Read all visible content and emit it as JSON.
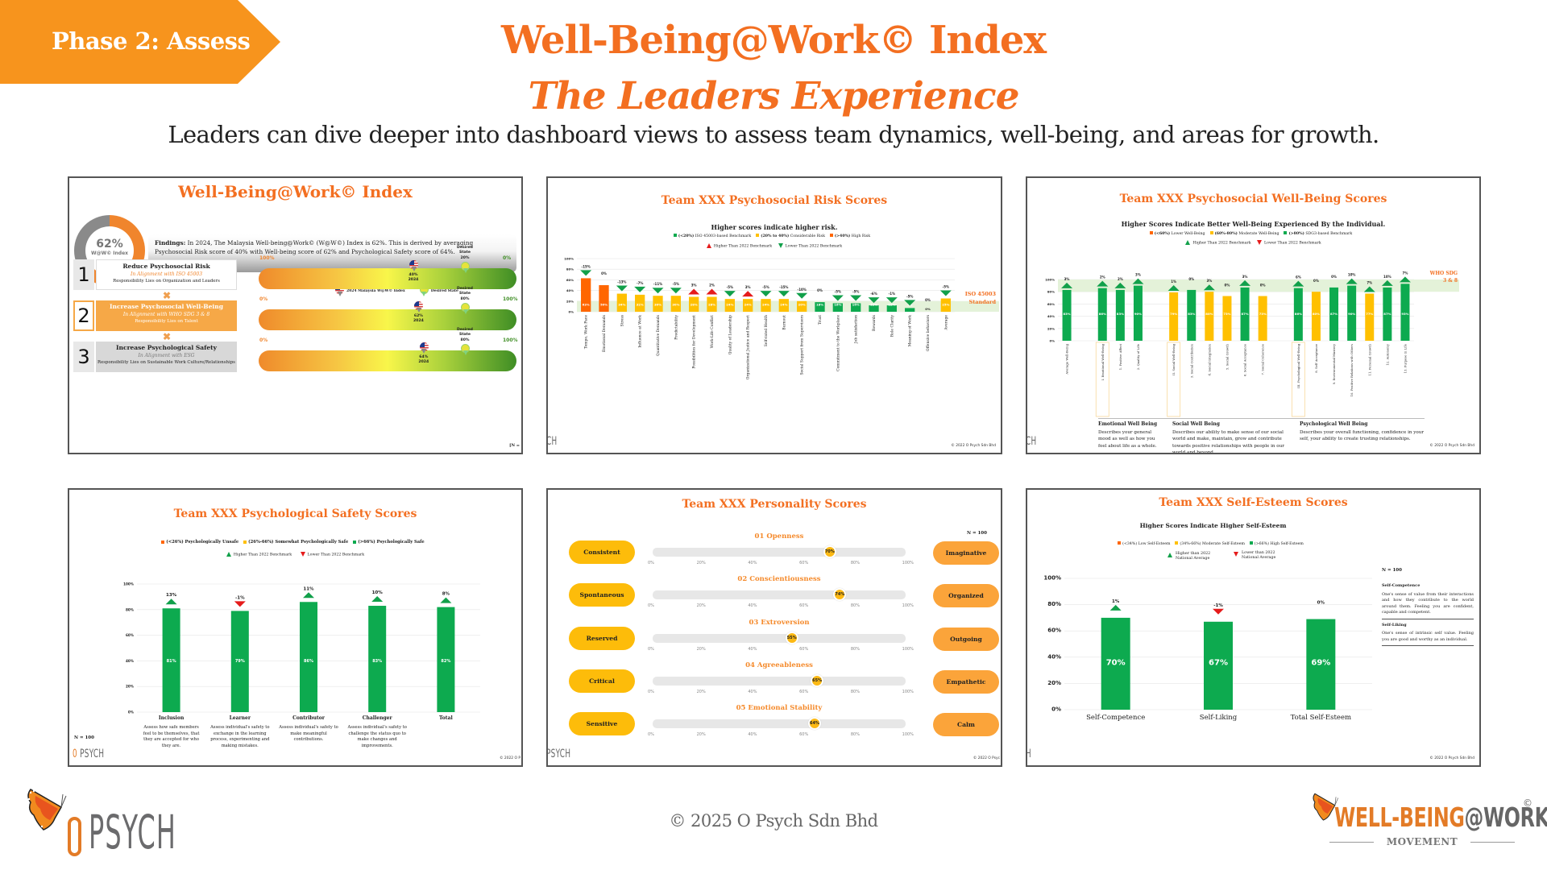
{
  "header": {
    "phase_label": "Phase 2: Assess",
    "title": "Well-Being@Work© Index",
    "subtitle": "The Leaders Experience",
    "tagline": "Leaders can dive deeper into dashboard views to assess team dynamics, well-being, and areas for growth."
  },
  "colors": {
    "brand_orange": "#f36f21",
    "phase_orange": "#f7941d",
    "green": "#0daa4f",
    "yellow": "#ffc000",
    "high_risk": "#ff6600",
    "red": "#e51b1b",
    "band": "#e4f2d9"
  },
  "panel1": {
    "title": "Well-Being@Work© Index",
    "donut": {
      "value_label": "62%",
      "value": 62,
      "label": "W@W© Index"
    },
    "findings_bold": "Findings:",
    "findings_text": " In 2024, The Malaysia Well-being@Work© (W@W©) Index is 62%. This is derived by averaging Psychosocial Risk score of 40% with Well-being score of 62% and Psychological Safety score of 64%.",
    "legend": {
      "index_label": "2024 Malaysia W@W© Index",
      "desired_label": "Desired State"
    },
    "steps": [
      {
        "num": "1",
        "title": "Reduce Psychosocial Risk",
        "align": "In Alignment with ISO 45003",
        "resp": "Responsibility Lies on Organization and Leaders"
      },
      {
        "num": "2",
        "title": "Increase Psychosocial Well-Being",
        "align": "In Alignment with WHO SDG 3 & 8",
        "resp": "Responsibility Lies on Talent"
      },
      {
        "num": "3",
        "title": "Increase Psychological Safety",
        "align": "In Alignment with ESG",
        "resp": "Responsibility Lies on Sustainable Work Culture/Relationships"
      }
    ],
    "gauges": [
      {
        "left_label": "100%",
        "right_label": "0%",
        "desired_title": "Desired State",
        "desired_value": "20%",
        "current_value": "40%",
        "current_year": "2024",
        "current_pos": 0.6,
        "desired_pos": 0.8
      },
      {
        "left_label": "0%",
        "right_label": "100%",
        "desired_title": "Desired State",
        "desired_value": "80%",
        "current_value": "62%",
        "current_year": "2024",
        "current_pos": 0.62,
        "desired_pos": 0.8
      },
      {
        "left_label": "0%",
        "right_label": "100%",
        "desired_title": "Desired State",
        "desired_value": "80%",
        "current_value": "64%",
        "current_year": "2024",
        "current_pos": 0.64,
        "desired_pos": 0.8
      }
    ],
    "n_label": "[N ="
  },
  "panel2": {
    "title": "Team XXX Psychosocial Risk Scores",
    "subtitle": "Higher scores indicate higher risk.",
    "legend_bands": [
      {
        "bold": "(<20%)",
        "text": " ISO 45003-based Benchmark",
        "color": "#0daa4f"
      },
      {
        "bold": "(20% to 40%)",
        "text": " Considerable Risk",
        "color": "#ffc000"
      },
      {
        "bold": "(>40%)",
        "text": " High Risk",
        "color": "#ff6600"
      }
    ],
    "legend_arrows": {
      "up": "Higher Than 2022 Benchmark",
      "down": "Lower Than 2022 Benchmark"
    },
    "band_label_1": "ISO 45003",
    "band_label_2": "Standard",
    "footer_logo": "CH",
    "copyright": "© 2022 O Psych Sdn Bhd"
  },
  "panel3": {
    "title": "Team XXX Psychosocial Well-Being Scores",
    "subtitle": "Higher Scores Indicate Better Well-Being Experienced By the Individual.",
    "legend_bands": [
      {
        "bold": "(<60%)",
        "text": " Lower Well-Being",
        "color": "#ff6600"
      },
      {
        "bold": "(60%-80%)",
        "text": " Moderate Well-Being",
        "color": "#ffc000"
      },
      {
        "bold": "(>80%)",
        "text": " SDG3-based Benchmark",
        "color": "#0daa4f"
      }
    ],
    "legend_arrows": {
      "up": "Higher Than 2022 Benchmark",
      "down": "Lower Than 2022 Benchmark"
    },
    "band_label_1": "WHO SDG",
    "band_label_2": "3 & 8",
    "descriptions": [
      {
        "title": "Emotional Well Being",
        "text": "Describes your general mood as well as how you feel about life as a whole."
      },
      {
        "title": "Social Well Being",
        "text": "Describes our ability to make sense of our social world and make, maintain, grow and contribute towards positive relationships with people in our world and beyond."
      },
      {
        "title": "Psychological Well Being",
        "text": "Describes your overall functioning, confidence in your self, your ability to create trusting relationships."
      }
    ],
    "footer_logo": "CH",
    "copyright": "© 2022 O Psych Sdn Bhd"
  },
  "panel4": {
    "title": "Team XXX Psychological Safety Scores",
    "legend_bands": [
      {
        "bold": "(<26%) Psychologically Unsafe",
        "text": "",
        "color": "#ff6600"
      },
      {
        "bold": "(26%-66%) Somewhat Psychologically Safe",
        "text": "",
        "color": "#ffc000"
      },
      {
        "bold": "(>66%) Psychologically Safe",
        "text": "",
        "color": "#0daa4f"
      }
    ],
    "legend_arrows": {
      "up": "Higher Than 2022 Benchmark",
      "down": "Lower Than 2022 Benchmark"
    },
    "descriptions": [
      "Assess how safe members feel to be themselves, that they are accepted for who they are.",
      "Assess individual's safety to exchange in the learning process, experimenting and making mistakes.",
      "Assess individual's safety to make meaningful contributions.",
      "Assess individual's safety to challenge the status quo to make changes and improvements."
    ],
    "n_label": "N = 100",
    "footer_logo": "O PSYCH",
    "copyright": "© 2022 O P"
  },
  "panel5": {
    "title": "Team XXX Personality Scores",
    "n_label": "N = 100",
    "ticks": [
      "0%",
      "20%",
      "40%",
      "60%",
      "80%",
      "100%"
    ],
    "traits": [
      {
        "title": "01  Openness",
        "left": "Consistent",
        "right": "Imaginative",
        "value": 70,
        "value_label": "70%"
      },
      {
        "title": "02  Conscientiousness",
        "left": "Spontaneous",
        "right": "Organized",
        "value": 74,
        "value_label": "74%"
      },
      {
        "title": "03  Extroversion",
        "left": "Reserved",
        "right": "Outgoing",
        "value": 55,
        "value_label": "55%"
      },
      {
        "title": "04  Agreeableness",
        "left": "Critical",
        "right": "Empathetic",
        "value": 65,
        "value_label": "65%"
      },
      {
        "title": "05  Emotional Stability",
        "left": "Sensitive",
        "right": "Calm",
        "value": 64,
        "value_label": "64%"
      }
    ],
    "footer_logo": "PSYCH",
    "copyright": "© 2022 O Psyc"
  },
  "panel6": {
    "title": "Team XXX Self-Esteem Scores",
    "subtitle": "Higher Scores Indicate Higher Self-Esteem",
    "legend_bands": [
      {
        "bold": "",
        "text": "(<34%) Low Self-Esteem",
        "color": "#ff6600"
      },
      {
        "bold": "",
        "text": "(34%-66%) Moderate Self-Esteem",
        "color": "#ffc000"
      },
      {
        "bold": "",
        "text": "(>66%) High Self-Esteem",
        "color": "#0daa4f"
      }
    ],
    "legend_up_1": "Higher than 2022",
    "legend_up_2": "National Average",
    "legend_down_1": "Lower than 2022",
    "legend_down_2": "National Average",
    "n_label": "N = 100",
    "notes": [
      {
        "title": "Self-Competence",
        "text": "One's sense of value from their interactions and how they contribute to the world around them. Feeling you are confident, capable and competent."
      },
      {
        "title": "Self-Liking",
        "text": "One's sense of intrinsic self value. Feeling you are good and worthy as an individual."
      }
    ],
    "footer_logo": "H",
    "copyright": "© 2022 O Psych Sdn Bhd"
  },
  "chart_data": [
    {
      "id": "risk",
      "type": "bar",
      "title": "Team XXX Psychosocial Risk Scores",
      "subtitle": "Higher scores indicate higher risk.",
      "ylabel": "",
      "ylim": [
        0,
        100
      ],
      "yticks": [
        "0%",
        "20%",
        "40%",
        "60%",
        "80%",
        "100%"
      ],
      "benchmark_band": [
        0,
        20
      ],
      "categories": [
        "Tempo, Work Pace",
        "Emotional Demands",
        "Stress",
        "Influence at Work",
        "Quantitative Demands",
        "Predictability",
        "Possibilities for Development",
        "Work-Life Conflict",
        "Quality of Leadership",
        "Organizational Justice and Respect",
        "Self-rated Health",
        "Burnout",
        "Social Support from Supervisors",
        "Trust",
        "Commitment to the Workplace",
        "Job satisfaction",
        "Rewards",
        "Role Clarity",
        "Meaning of Work",
        "Offensive behaviors",
        "Average"
      ],
      "values": [
        63,
        50,
        34,
        32,
        30,
        30,
        28,
        28,
        24,
        24,
        24,
        24,
        20,
        18,
        16,
        16,
        12,
        12,
        7,
        0,
        25
      ],
      "value_labels": [
        "63%",
        "50%",
        "34%",
        "32%",
        "30%",
        "30%",
        "28%",
        "28%",
        "24%",
        "24%",
        "24%",
        "24%",
        "20%",
        "18%",
        "16%",
        "16%",
        "12%",
        "12%",
        "7%",
        "0%",
        "25%"
      ],
      "bar_colors": [
        "#ff6600",
        "#ff6600",
        "#ffc000",
        "#ffc000",
        "#ffc000",
        "#ffc000",
        "#ffc000",
        "#ffc000",
        "#ffc000",
        "#ffc000",
        "#ffc000",
        "#ffc000",
        "#ffc000",
        "#0daa4f",
        "#0daa4f",
        "#0daa4f",
        "#0daa4f",
        "#0daa4f",
        "#0daa4f",
        "#0daa4f",
        "#ffc000"
      ],
      "change_labels": [
        "-15%",
        "0%",
        "-13%",
        "-7%",
        "-11%",
        "-5%",
        "3%",
        "2%",
        "-5%",
        "3%",
        "-5%",
        "-15%",
        "-10%",
        "0%",
        "-5%",
        "-5%",
        "-6%",
        "-1%",
        "-5%",
        "0%",
        "-5%"
      ],
      "change_dirs": [
        "down",
        "none",
        "down",
        "down",
        "down",
        "down",
        "up-red",
        "up-red",
        "down",
        "up-red",
        "down",
        "down",
        "down",
        "none",
        "down",
        "down",
        "down",
        "down",
        "down",
        "none",
        "down"
      ]
    },
    {
      "id": "wellbeing",
      "type": "bar",
      "title": "Team XXX Psychosocial Well-Being Scores",
      "ylim": [
        0,
        100
      ],
      "yticks": [
        "0%",
        "20%",
        "40%",
        "60%",
        "80%",
        "100%"
      ],
      "benchmark_band": [
        80,
        100
      ],
      "categories": [
        "Average Well-Being",
        "",
        "I. Emotional Well-Being",
        "1. Positive Affect",
        "2. Quality of Life",
        "",
        "II. Social Well-Being",
        "3. Social Contribution",
        "4. Social Integration",
        "5. Social Growth",
        "6. Social Acceptance",
        "7. Social Coherence",
        "",
        "III. Psychological Well-Being",
        "8. Self Acceptance",
        "9. Environmental Mastery",
        "10. Positive Relations with Others",
        "11. Personal Growth",
        "12. Autonomy",
        "13. Purpose in Life"
      ],
      "values": [
        83,
        null,
        86,
        83,
        90,
        null,
        79,
        83,
        80,
        73,
        87,
        73,
        null,
        86,
        80,
        87,
        90,
        77,
        87,
        93
      ],
      "value_labels": [
        "83%",
        "",
        "86%",
        "83%",
        "90%",
        "",
        "79%",
        "83%",
        "80%",
        "73%",
        "87%",
        "73%",
        "",
        "86%",
        "80%",
        "87%",
        "90%",
        "77%",
        "87%",
        "93%"
      ],
      "bar_colors": [
        "#0daa4f",
        "",
        "#0daa4f",
        "#0daa4f",
        "#0daa4f",
        "",
        "#ffc000",
        "#0daa4f",
        "#ffc000",
        "#ffc000",
        "#0daa4f",
        "#ffc000",
        "",
        "#0daa4f",
        "#ffc000",
        "#0daa4f",
        "#0daa4f",
        "#ffc000",
        "#0daa4f",
        "#0daa4f"
      ],
      "change_labels": [
        "3%",
        "",
        "2%",
        "2%",
        "3%",
        "",
        "1%",
        "0%",
        "3%",
        "0%",
        "3%",
        "0%",
        "",
        "6%",
        "0%",
        "0%",
        "10%",
        "7%",
        "10%",
        "7%"
      ],
      "change_dirs": [
        "up",
        "",
        "up",
        "up",
        "up",
        "",
        "up",
        "none",
        "up",
        "none",
        "up",
        "none",
        "",
        "up",
        "none",
        "none",
        "up",
        "up",
        "up",
        "up"
      ],
      "highlighted": [
        2,
        6,
        13
      ]
    },
    {
      "id": "safety",
      "type": "bar",
      "title": "Team XXX Psychological Safety Scores",
      "ylim": [
        0,
        100
      ],
      "yticks": [
        "0%",
        "20%",
        "40%",
        "60%",
        "80%",
        "100%"
      ],
      "categories": [
        "Inclusion",
        "Learner",
        "Contributor",
        "Challenger",
        "Total"
      ],
      "values": [
        81,
        79,
        86,
        83,
        82
      ],
      "value_labels": [
        "81%",
        "79%",
        "86%",
        "83%",
        "82%"
      ],
      "change_labels": [
        "13%",
        "-1%",
        "11%",
        "10%",
        "8%"
      ],
      "change_dirs": [
        "up",
        "down-red",
        "up",
        "up",
        "up"
      ]
    },
    {
      "id": "selfesteem",
      "type": "bar",
      "title": "Team XXX Self-Esteem Scores",
      "ylim": [
        0,
        100
      ],
      "yticks": [
        "0%",
        "20%",
        "40%",
        "60%",
        "80%",
        "100%"
      ],
      "categories": [
        "Self-Competence",
        "Self-Liking",
        "Total Self-Esteem"
      ],
      "values": [
        70,
        67,
        69
      ],
      "value_labels": [
        "70%",
        "67%",
        "69%"
      ],
      "change_labels": [
        "1%",
        "-1%",
        "0%"
      ],
      "change_dirs": [
        "up",
        "down-red",
        "none"
      ]
    }
  ],
  "footer": {
    "copyright": "© 2025 O Psych Sdn Bhd",
    "opsych_logo": "PSYCH",
    "wbw_orange": "WELL-BEING",
    "wbw_grey": "@WORK",
    "wbw_copy": "©",
    "wbw_movement": "MOVEMENT"
  }
}
